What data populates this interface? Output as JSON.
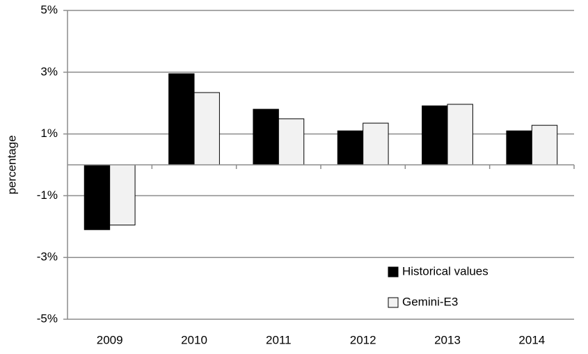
{
  "chart_data": {
    "type": "bar",
    "y_label": "percentage",
    "categories": [
      "2009",
      "2010",
      "2011",
      "2012",
      "2013",
      "2014"
    ],
    "series": [
      {
        "name": "Historical values",
        "color": "#000000",
        "values": [
          -2.1,
          2.95,
          1.8,
          1.1,
          1.91,
          1.1
        ]
      },
      {
        "name": "Gemini-E3",
        "color": "#f2f2f2",
        "values": [
          -1.95,
          2.34,
          1.49,
          1.35,
          1.96,
          1.28
        ]
      }
    ],
    "ylim": [
      -5,
      5
    ],
    "yticks": [
      {
        "value": -5,
        "label": "-5%"
      },
      {
        "value": -3,
        "label": "-3%"
      },
      {
        "value": -1,
        "label": "-1%"
      },
      {
        "value": 1,
        "label": "1%"
      },
      {
        "value": 3,
        "label": "3%"
      },
      {
        "value": 5,
        "label": "5%"
      }
    ],
    "grid": true,
    "legend_loc": "lower right"
  }
}
